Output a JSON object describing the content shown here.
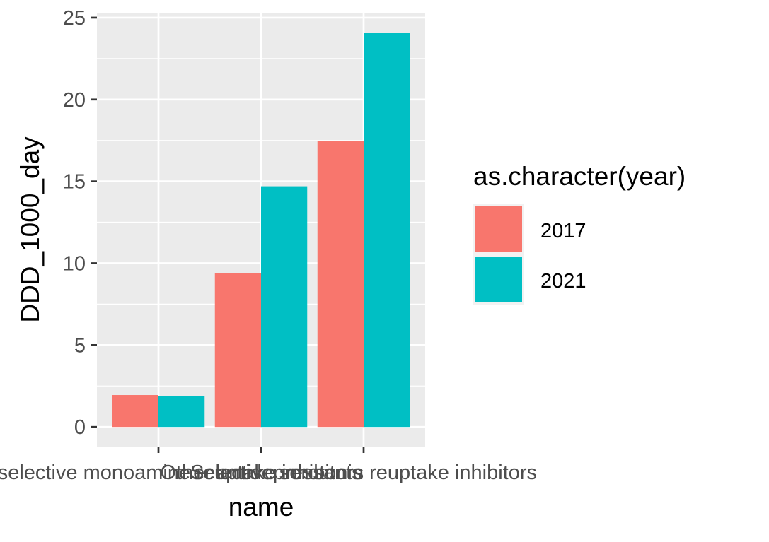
{
  "chart_data": {
    "type": "bar",
    "categories": [
      "Non-selective monoamine reuptake inhibitors",
      "Other antidepressants",
      "Selective serotonin reuptake inhibitors"
    ],
    "series": [
      {
        "name": "2017",
        "values": [
          1.95,
          9.4,
          17.45
        ],
        "color": "#F8766D"
      },
      {
        "name": "2021",
        "values": [
          1.9,
          14.7,
          24.05
        ],
        "color": "#00BFC4"
      }
    ],
    "xlabel": "name",
    "ylabel": "DDD_1000_day",
    "ylim": [
      -1.2,
      25.3
    ],
    "yticks": [
      0,
      5,
      10,
      15,
      20,
      25
    ],
    "ytick_labels": [
      "0",
      "5",
      "10",
      "15",
      "20",
      "25"
    ],
    "legend": {
      "title": "as.character(year)",
      "position": "right"
    },
    "grid": true,
    "panel_background": "#EBEBEB",
    "gridline_color": "#FFFFFF"
  }
}
